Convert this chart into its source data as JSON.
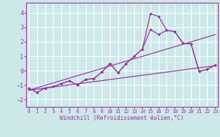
{
  "xlabel": "Windchill (Refroidissement éolien,°C)",
  "bg_color": "#cce8e8",
  "grid_color": "#ffffff",
  "line_color": "#993399",
  "x_ticks": [
    0,
    1,
    2,
    3,
    4,
    5,
    6,
    7,
    8,
    9,
    10,
    11,
    12,
    13,
    14,
    15,
    16,
    17,
    18,
    19,
    20,
    21,
    22,
    23
  ],
  "ylim": [
    -2.5,
    4.7
  ],
  "xlim": [
    -0.3,
    23.3
  ],
  "yticks": [
    -2,
    -1,
    0,
    1,
    2,
    3,
    4
  ],
  "series1_x": [
    0,
    1,
    2,
    3,
    4,
    5,
    6,
    7,
    8,
    9,
    10,
    11,
    12,
    13,
    14,
    15,
    16,
    17,
    18,
    19,
    20,
    21,
    22,
    23
  ],
  "series1_y": [
    -1.2,
    -1.5,
    -1.2,
    -1.1,
    -0.9,
    -0.7,
    -1.0,
    -0.6,
    -0.55,
    -0.1,
    0.5,
    -0.15,
    0.5,
    1.0,
    1.5,
    2.85,
    2.5,
    2.8,
    2.7,
    1.9,
    1.85,
    -0.05,
    0.1,
    0.4
  ],
  "series2_x": [
    0,
    1,
    2,
    3,
    4,
    5,
    6,
    7,
    8,
    9,
    10,
    11,
    12,
    13,
    14,
    15,
    16,
    17,
    18,
    19,
    20,
    21,
    22,
    23
  ],
  "series2_y": [
    -1.2,
    -1.5,
    -1.2,
    -1.1,
    -0.9,
    -0.7,
    -1.0,
    -0.6,
    -0.55,
    -0.1,
    0.5,
    -0.15,
    0.5,
    1.0,
    1.5,
    3.95,
    3.75,
    2.8,
    2.7,
    1.9,
    1.85,
    -0.05,
    0.1,
    0.4
  ],
  "line1_x": [
    0,
    23
  ],
  "line1_y": [
    -1.35,
    0.35
  ],
  "line2_x": [
    0,
    23
  ],
  "line2_y": [
    -1.35,
    2.5
  ]
}
